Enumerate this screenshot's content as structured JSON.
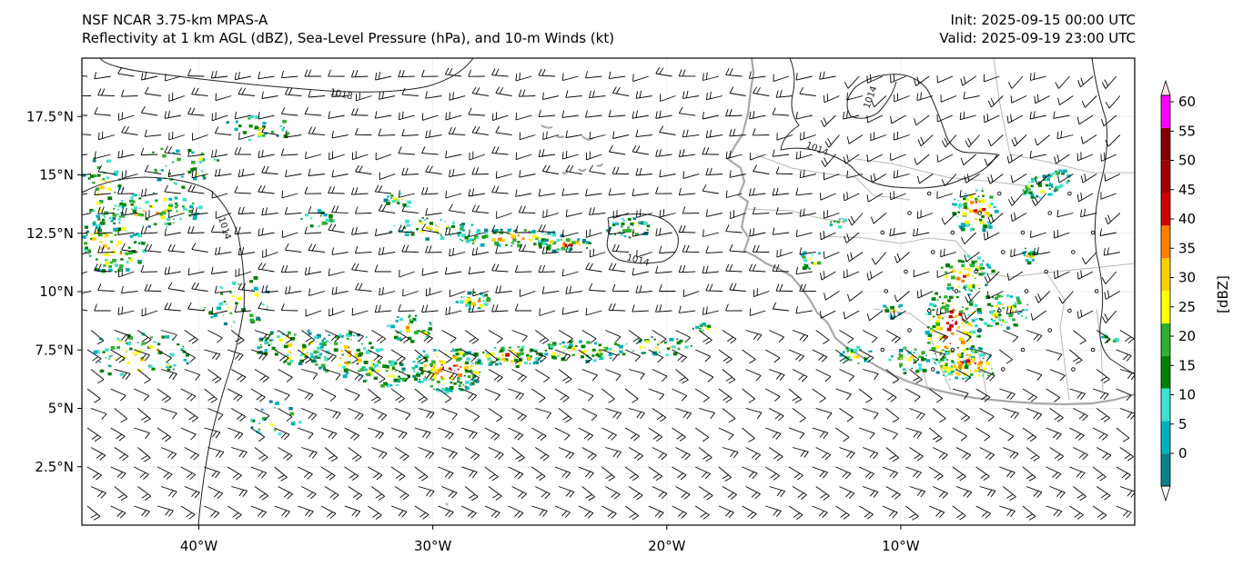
{
  "titles": {
    "left_line1": "NSF NCAR 3.75-km MPAS-A",
    "left_line2": "Reflectivity at 1 km AGL (dBZ), Sea-Level Pressure (hPa), and 10-m Winds (kt)",
    "right_line1": "Init: 2025-09-15 00:00 UTC",
    "right_line2": "Valid: 2025-09-19 23:00 UTC"
  },
  "map": {
    "lon_range": [
      -45,
      0
    ],
    "lat_range": [
      0,
      20
    ],
    "lat_ticks": [
      "2.5°N",
      "5°N",
      "7.5°N",
      "10°N",
      "12.5°N",
      "15°N",
      "17.5°N"
    ],
    "lat_values": [
      2.5,
      5,
      7.5,
      10,
      12.5,
      15,
      17.5
    ],
    "lon_ticks": [
      "40°W",
      "30°W",
      "20°W",
      "10°W"
    ],
    "lon_values": [
      -40,
      -30,
      -20,
      -10
    ],
    "isobar_labels": [
      "1018",
      "1014",
      "1014",
      "1014",
      "1014"
    ],
    "colors": {
      "coast": "#a8a8a8",
      "isobar": "#222222",
      "barb": "#000000"
    }
  },
  "colorbar": {
    "label": "[dBZ]",
    "ticks": [
      "0",
      "5",
      "10",
      "15",
      "20",
      "25",
      "30",
      "35",
      "40",
      "45",
      "50",
      "55",
      "60"
    ],
    "colors": [
      "#ffffff",
      "#0b7f8a",
      "#00b0c0",
      "#40e0d0",
      "#008000",
      "#30b030",
      "#ffff00",
      "#ffd000",
      "#ff8000",
      "#d00000",
      "#a00000",
      "#800000",
      "#ff00ff",
      "#ffe4dc"
    ]
  }
}
